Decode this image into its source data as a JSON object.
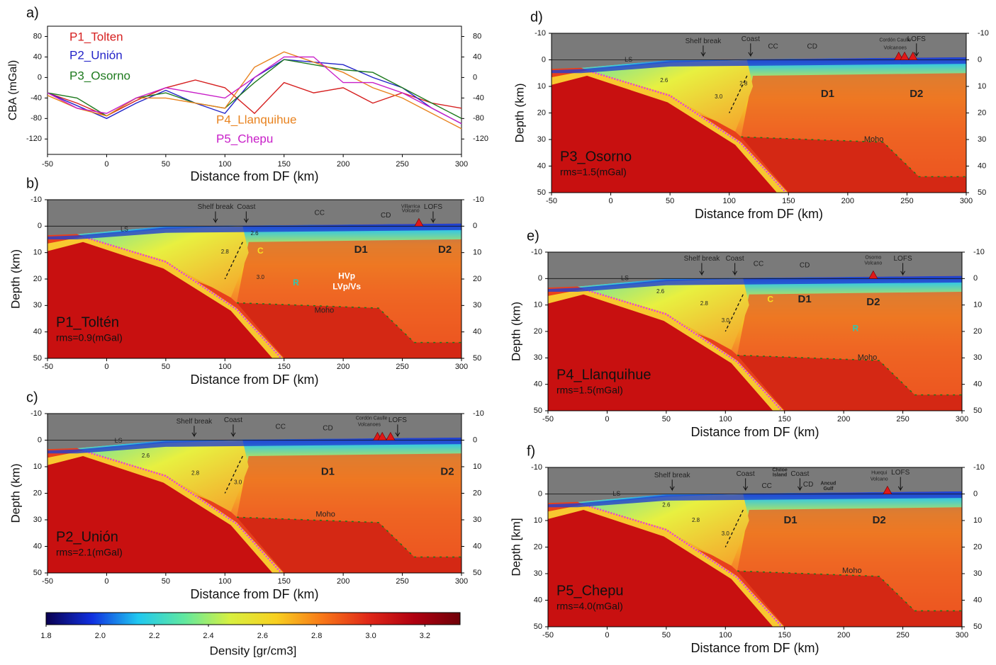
{
  "chart_data": [
    {
      "type": "line",
      "panel_label": "a)",
      "ylabel": "CBA (mGal)",
      "xlabel": "Distance from DF (km)",
      "x": [
        -50,
        -25,
        0,
        25,
        50,
        75,
        100,
        125,
        150,
        175,
        200,
        225,
        250,
        275,
        300
      ],
      "xlim": [
        -50,
        300
      ],
      "xticks": [
        -50,
        0,
        50,
        100,
        150,
        200,
        250,
        300
      ],
      "ylim": [
        -150,
        100
      ],
      "yticks": [
        -120,
        -80,
        -40,
        0,
        40,
        80
      ],
      "y2lim": [
        -150,
        100
      ],
      "y2ticks": [
        -120,
        -80,
        -40,
        0,
        40,
        80
      ],
      "series": [
        {
          "name": "P1_Tolten",
          "color": "#d62020",
          "values": [
            -30,
            -50,
            -75,
            -45,
            -20,
            -5,
            -20,
            -70,
            -10,
            -30,
            -20,
            -50,
            -30,
            -50,
            -60
          ]
        },
        {
          "name": "P2_Unión",
          "color": "#2323c8",
          "values": [
            -30,
            -55,
            -80,
            -50,
            -25,
            -50,
            -70,
            0,
            35,
            30,
            25,
            0,
            -20,
            -60,
            -90
          ]
        },
        {
          "name": "P3_Osorno",
          "color": "#1e7a1e",
          "values": [
            -30,
            -40,
            -75,
            -40,
            -30,
            -50,
            -60,
            -10,
            35,
            25,
            15,
            10,
            -20,
            -50,
            -80
          ]
        },
        {
          "name": "P4_Llanquihue",
          "color": "#e8821e",
          "values": [
            -35,
            -60,
            -75,
            -40,
            -40,
            -50,
            -60,
            20,
            50,
            30,
            10,
            -20,
            -40,
            -70,
            -100
          ]
        },
        {
          "name": "P5_Chepu",
          "color": "#c81ec8",
          "values": [
            -30,
            -60,
            -70,
            -40,
            -20,
            -30,
            -40,
            0,
            40,
            40,
            -10,
            -10,
            -30,
            -60,
            -90
          ]
        }
      ]
    },
    {
      "type": "section",
      "panel_label": "b)",
      "profile": "P1_Toltén",
      "rms": "rms=0.9(mGal)",
      "ylabel": "Depth (km)",
      "xlabel": "Distance from DF (km)",
      "xlim": [
        -50,
        300
      ],
      "xticks": [
        -50,
        0,
        50,
        100,
        150,
        200,
        250,
        300
      ],
      "ylim": [
        -10,
        50
      ],
      "yticks": [
        -10,
        0,
        10,
        20,
        30,
        40,
        50
      ],
      "annotations": [
        "Shelf break",
        "Coast",
        "CC",
        "CD",
        "Villarrica",
        "Volcano",
        "LOFS",
        "LS",
        "2.6",
        "2.8",
        "3.0",
        "D1",
        "D2",
        "HVp",
        "LVp/Vs",
        "Moho",
        "R",
        "C"
      ]
    },
    {
      "type": "section",
      "panel_label": "c)",
      "profile": "P2_Unión",
      "rms": "rms=2.1(mGal)",
      "ylabel": "Depth (km)",
      "xlabel": "Distance from DF (km)",
      "xlim": [
        -50,
        300
      ],
      "xticks": [
        -50,
        0,
        50,
        100,
        150,
        200,
        250,
        300
      ],
      "ylim": [
        -10,
        50
      ],
      "yticks": [
        -10,
        0,
        10,
        20,
        30,
        40,
        50
      ],
      "annotations": [
        "Shelf break",
        "Coast",
        "CC",
        "CD",
        "Cordón Caulle",
        "Volcanoes",
        "LOFS",
        "LS",
        "2.6",
        "2.8",
        "3.0",
        "D1",
        "D2",
        "Moho"
      ]
    },
    {
      "type": "colorbar",
      "xlabel": "Density [gr/cm3]",
      "xlim": [
        1.8,
        3.33
      ],
      "xticks": [
        1.8,
        {
          "value": 2,
          "label": "2.0"
        },
        2.2,
        2.4,
        2.6,
        2.8,
        {
          "value": 3,
          "label": "3.0"
        },
        3.2
      ],
      "colors": [
        "#0a0050",
        "#1030e0",
        "#20c8f0",
        "#60e8a0",
        "#d8f040",
        "#f8d020",
        "#f87818",
        "#e02818",
        "#b00010",
        "#700008"
      ]
    },
    {
      "type": "section",
      "panel_label": "d)",
      "profile": "P3_Osorno",
      "rms": "rms=1.5(mGal)",
      "ylabel": "Depth (km)",
      "xlabel": "Distance from DF (km)",
      "xlim": [
        -50,
        300
      ],
      "xticks": [
        -50,
        0,
        50,
        100,
        150,
        200,
        250,
        300
      ],
      "ylim": [
        -10,
        50
      ],
      "yticks": [
        -10,
        0,
        10,
        20,
        30,
        40,
        50
      ],
      "annotations": [
        "Shelf break",
        "Coast",
        "CC",
        "CD",
        "Cordón Caulle",
        "Volcanoes",
        "LOFS",
        "LS",
        "2.6",
        "2.8",
        "3.0",
        "D1",
        "D2",
        "Moho"
      ]
    },
    {
      "type": "section",
      "panel_label": "e)",
      "profile": "P4_Llanquihue",
      "rms": "rms=1.5(mGal)",
      "ylabel": "Depth (km)",
      "xlabel": "Distance from DF (km)",
      "xlim": [
        -50,
        300
      ],
      "xticks": [
        -50,
        0,
        50,
        100,
        150,
        200,
        250,
        300
      ],
      "ylim": [
        -10,
        50
      ],
      "yticks": [
        -10,
        0,
        10,
        20,
        30,
        40,
        50
      ],
      "annotations": [
        "Shelf break",
        "Coast",
        "CC",
        "CD",
        "Osorno",
        "Volcano",
        "LOFS",
        "LS",
        "2.6",
        "2.8",
        "3.0",
        "D1",
        "D2",
        "Moho",
        "R",
        "C"
      ]
    },
    {
      "type": "section",
      "panel_label": "f)",
      "profile": "P5_Chepu",
      "rms": "rms=4.0(mGal)",
      "ylabel": "Depth [km]",
      "xlabel": "Distance from DF (km)",
      "xlim": [
        -50,
        300
      ],
      "xticks": [
        -50,
        0,
        50,
        100,
        150,
        200,
        250,
        300
      ],
      "ylim": [
        -10,
        50
      ],
      "yticks": [
        -10,
        0,
        10,
        20,
        30,
        40,
        50
      ],
      "annotations": [
        "Shelf break",
        "Coast",
        "Chiloe",
        "Island",
        "Coast",
        "CC",
        "CD",
        "Ancud",
        "Gulf",
        "Huequi",
        "Volcano",
        "LOFS",
        "LS",
        "2.6",
        "2.8",
        "3.0",
        "D1",
        "D2",
        "Moho"
      ]
    }
  ]
}
